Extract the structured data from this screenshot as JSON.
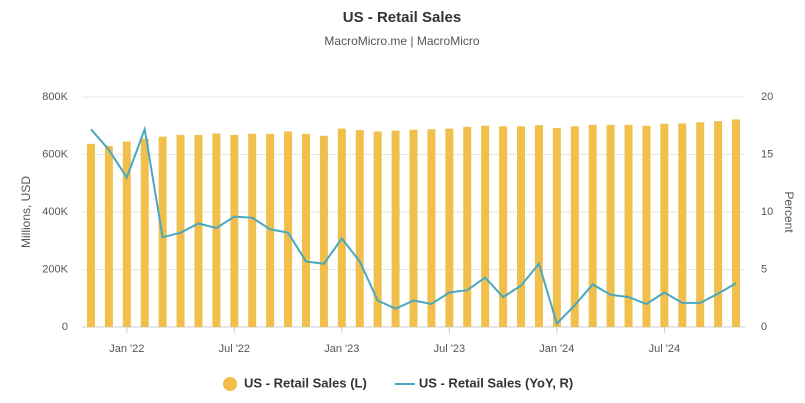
{
  "chart_data": {
    "type": "bar_line",
    "title": "US - Retail Sales",
    "subtitle": "MacroMicro.me | MacroMicro",
    "y_label": "Millions, USD",
    "y2_label": "Percent",
    "categories": [
      null,
      null,
      "Jan '22",
      null,
      null,
      null,
      null,
      null,
      "Jul '22",
      null,
      null,
      null,
      null,
      null,
      "Jan '23",
      null,
      null,
      null,
      null,
      null,
      "Jul '23",
      null,
      null,
      null,
      null,
      null,
      "Jan '24",
      null,
      null,
      null,
      null,
      null,
      "Jul '24",
      null,
      null,
      null,
      null
    ],
    "series": [
      {
        "name": "US - Retail Sales (L)",
        "color": "#f0bf4c",
        "kind": "bar",
        "values": [
          637000,
          630000,
          645000,
          655000,
          662000,
          668000,
          668000,
          673000,
          668000,
          672000,
          672000,
          680000,
          672000,
          665000,
          690000,
          685000,
          680000,
          683000,
          686000,
          688000,
          690000,
          696000,
          700000,
          698000,
          698000,
          702000,
          692000,
          698000,
          703000,
          703000,
          703000,
          700000,
          707000,
          708000,
          712000,
          716000,
          722000
        ]
      },
      {
        "name": "US - Retail Sales (YoY, R)",
        "color": "#4aa8c0",
        "kind": "line",
        "axis": "y2",
        "values": [
          17.2,
          15.4,
          13.0,
          17.2,
          7.8,
          8.2,
          9.0,
          8.6,
          9.6,
          9.5,
          8.5,
          8.2,
          5.7,
          5.5,
          7.7,
          5.7,
          2.3,
          1.6,
          2.3,
          2.0,
          3.0,
          3.2,
          4.3,
          2.6,
          3.6,
          5.5,
          0.3,
          1.9,
          3.7,
          2.8,
          2.6,
          2.0,
          3.0,
          2.1,
          2.1,
          2.9,
          3.8
        ]
      }
    ],
    "ylim": [
      0,
      800000
    ],
    "yticks": [
      0,
      {
        "value": 200000,
        "label": "200K"
      },
      {
        "value": 400000,
        "label": "400K"
      },
      {
        "value": 600000,
        "label": "600K"
      },
      {
        "value": 800000,
        "label": "800K"
      }
    ],
    "y2lim": [
      0,
      20
    ],
    "y2ticks": [
      0,
      5,
      10,
      15,
      20
    ],
    "grid": true,
    "legend": "bottom"
  }
}
